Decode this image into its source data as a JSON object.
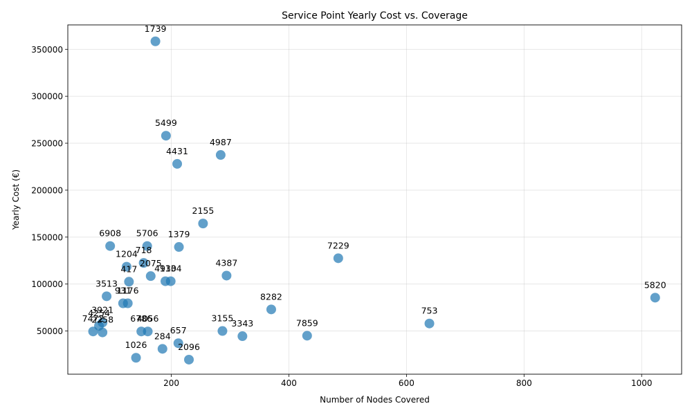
{
  "chart_data": {
    "type": "scatter",
    "title": "Service Point Yearly Cost vs. Coverage",
    "xlabel": "Number of Nodes Covered",
    "ylabel": "Yearly Cost (€)",
    "xlim": [
      24,
      1068
    ],
    "ylim": [
      4000,
      376000
    ],
    "xticks": [
      200,
      400,
      600,
      800,
      1000
    ],
    "yticks": [
      50000,
      100000,
      150000,
      200000,
      250000,
      300000,
      350000
    ],
    "grid": true,
    "marker_color": "#1f77b4",
    "points": [
      {
        "label": "1739",
        "x": 173,
        "y": 358500
      },
      {
        "label": "5499",
        "x": 191,
        "y": 258000
      },
      {
        "label": "4987",
        "x": 284,
        "y": 237500
      },
      {
        "label": "4431",
        "x": 210,
        "y": 228000
      },
      {
        "label": "2155",
        "x": 254,
        "y": 164500
      },
      {
        "label": "6908",
        "x": 96,
        "y": 140500
      },
      {
        "label": "5706",
        "x": 159,
        "y": 140500
      },
      {
        "label": "1379",
        "x": 213,
        "y": 139500
      },
      {
        "label": "7229",
        "x": 484,
        "y": 127500
      },
      {
        "label": "718",
        "x": 153,
        "y": 122500
      },
      {
        "label": "1204",
        "x": 124,
        "y": 118500
      },
      {
        "label": "4387",
        "x": 294,
        "y": 109000
      },
      {
        "label": "2075",
        "x": 165,
        "y": 108500
      },
      {
        "label": "417",
        "x": 128,
        "y": 102500
      },
      {
        "label": "4930",
        "x": 190,
        "y": 103000
      },
      {
        "label": "1134",
        "x": 199,
        "y": 103000
      },
      {
        "label": "5820",
        "x": 1023,
        "y": 85500
      },
      {
        "label": "3513",
        "x": 90,
        "y": 87000
      },
      {
        "label": "931",
        "x": 118,
        "y": 79500
      },
      {
        "label": "1176",
        "x": 126,
        "y": 79500
      },
      {
        "label": "8282",
        "x": 370,
        "y": 73000
      },
      {
        "label": "753",
        "x": 639,
        "y": 58000
      },
      {
        "label": "3921",
        "x": 83,
        "y": 59000
      },
      {
        "label": "4254",
        "x": 77,
        "y": 55500
      },
      {
        "label": "7472",
        "x": 67,
        "y": 49500
      },
      {
        "label": "2258",
        "x": 83,
        "y": 48500
      },
      {
        "label": "6786",
        "x": 149,
        "y": 49500
      },
      {
        "label": "4056",
        "x": 160,
        "y": 49500
      },
      {
        "label": "3155",
        "x": 287,
        "y": 50000
      },
      {
        "label": "3343",
        "x": 321,
        "y": 44500
      },
      {
        "label": "7859",
        "x": 431,
        "y": 45000
      },
      {
        "label": "657",
        "x": 212,
        "y": 37000
      },
      {
        "label": "284",
        "x": 185,
        "y": 31000
      },
      {
        "label": "1026",
        "x": 140,
        "y": 21500
      },
      {
        "label": "2096",
        "x": 230,
        "y": 19500
      }
    ]
  }
}
